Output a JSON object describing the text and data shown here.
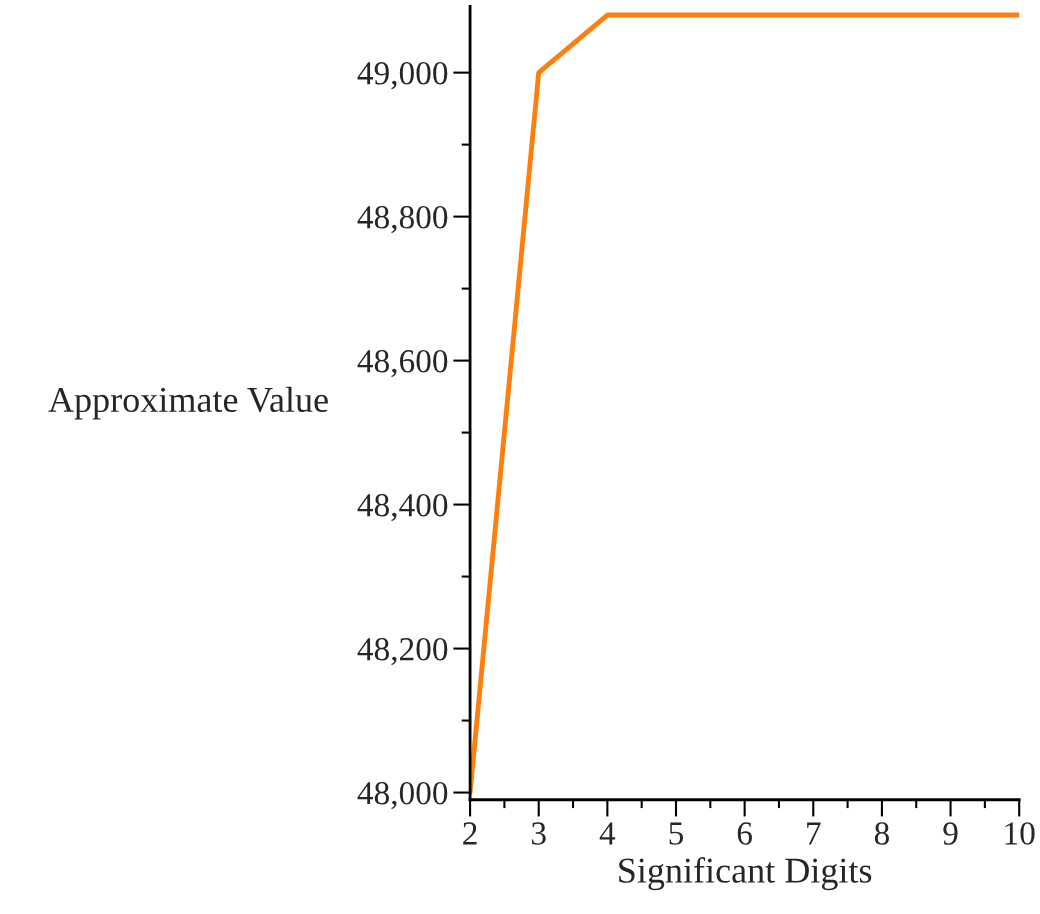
{
  "chart_data": {
    "type": "line",
    "xlabel": "Significant Digits",
    "ylabel": "Approximate Value",
    "x": [
      2,
      3,
      4,
      5,
      6,
      7,
      8,
      9,
      10
    ],
    "series": [
      {
        "color": "#ff7f0e",
        "values": [
          48000,
          49000,
          49080,
          49080,
          49080,
          49080,
          49080,
          49080,
          49080
        ]
      }
    ],
    "xlim": [
      2,
      10
    ],
    "ylim": [
      47990,
      49092
    ],
    "xticks": [
      2,
      3,
      4,
      5,
      6,
      7,
      8,
      9,
      10,
      {
        "value": 2.5,
        "label": null
      },
      {
        "value": 3.5,
        "label": null
      },
      {
        "value": 4.5,
        "label": null
      },
      {
        "value": 5.5,
        "label": null
      },
      {
        "value": 6.5,
        "label": null
      },
      {
        "value": 7.5,
        "label": null
      },
      {
        "value": 8.5,
        "label": null
      },
      {
        "value": 9.5,
        "label": null
      }
    ],
    "yticks": [
      {
        "value": 48000,
        "label": "48,000"
      },
      {
        "value": 48200,
        "label": "48,200"
      },
      {
        "value": 48400,
        "label": "48,400"
      },
      {
        "value": 48600,
        "label": "48,600"
      },
      {
        "value": 48800,
        "label": "48,800"
      },
      {
        "value": 49000,
        "label": "49,000"
      },
      {
        "value": 48100,
        "label": null
      },
      {
        "value": 48300,
        "label": null
      },
      {
        "value": 48500,
        "label": null
      },
      {
        "value": 48700,
        "label": null
      },
      {
        "value": 48900,
        "label": null
      }
    ],
    "grid": false,
    "line_style": "solid",
    "marker": "none"
  }
}
